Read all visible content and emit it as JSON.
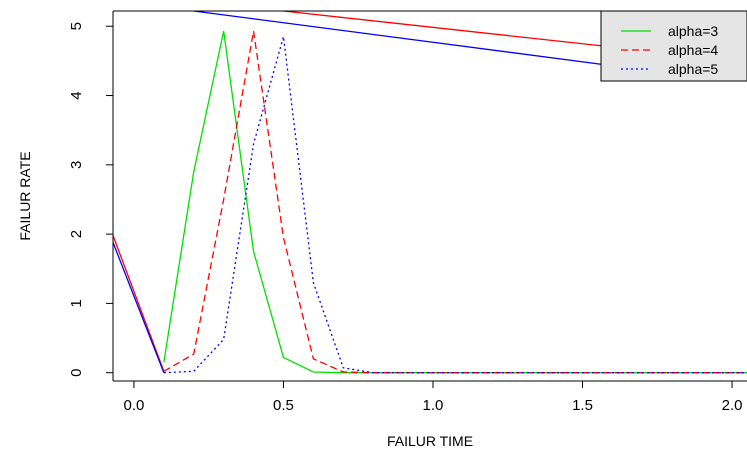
{
  "chart_data": {
    "type": "line",
    "xlabel": "FAILUR TIME",
    "ylabel": "FAILUR RATE",
    "xlim": [
      -0.07,
      2.05
    ],
    "ylim": [
      -0.12,
      5.22
    ],
    "xticks": [
      0.0,
      0.5,
      1.0,
      1.5,
      2.0
    ],
    "xtick_labels": [
      "0.0",
      "0.5",
      "1.0",
      "1.5",
      "2.0"
    ],
    "yticks": [
      0,
      1,
      2,
      3,
      4,
      5
    ],
    "ytick_labels": [
      "0",
      "1",
      "2",
      "3",
      "4",
      "5"
    ],
    "grid": false,
    "legend_position": "top-right",
    "series": [
      {
        "name": "alpha=3",
        "color": "#00e000",
        "dash": "solid",
        "x": [
          0.1,
          0.2,
          0.3,
          0.4,
          0.5,
          0.6,
          0.7,
          0.8,
          0.9,
          1.0,
          1.1,
          1.2,
          1.3,
          1.4,
          1.5,
          1.6,
          1.7,
          1.8,
          1.9,
          2.0,
          2.05
        ],
        "y": [
          0.15,
          2.9,
          4.93,
          1.75,
          0.22,
          0.01,
          0,
          0,
          0,
          0,
          0,
          0,
          0,
          0,
          0,
          0,
          0,
          0,
          0,
          0,
          0
        ]
      },
      {
        "name": "alpha=4",
        "color": "#ff0000",
        "dash": "dashed",
        "x": [
          0.1,
          0.2,
          0.3,
          0.4,
          0.5,
          0.6,
          0.7,
          0.8,
          0.9,
          1.0,
          1.1,
          1.2,
          1.3,
          1.4,
          1.5,
          1.6,
          1.7,
          1.8,
          1.9,
          2.0,
          2.05
        ],
        "y": [
          0.02,
          0.27,
          2.5,
          4.93,
          1.95,
          0.2,
          0.01,
          0,
          0,
          0,
          0,
          0,
          0,
          0,
          0,
          0,
          0,
          0,
          0,
          0,
          0
        ]
      },
      {
        "name": "alpha=5",
        "color": "#0000ff",
        "dash": "dotted",
        "x": [
          0.1,
          0.2,
          0.3,
          0.4,
          0.5,
          0.6,
          0.7,
          0.8,
          0.9,
          1.0,
          1.1,
          1.2,
          1.3,
          1.4,
          1.5,
          1.6,
          1.7,
          1.8,
          1.9,
          2.0,
          2.05
        ],
        "y": [
          0,
          0.02,
          0.48,
          3.3,
          4.85,
          1.3,
          0.07,
          0,
          0,
          0,
          0,
          0,
          0,
          0,
          0,
          0,
          0,
          0,
          0,
          0,
          0
        ]
      }
    ],
    "extra_lines": [
      {
        "color": "#ff0000",
        "x": [
          -0.07,
          0.1
        ],
        "y": [
          1.98,
          0.02
        ]
      },
      {
        "color": "#0000ff",
        "x": [
          -0.07,
          0.1
        ],
        "y": [
          1.88,
          0
        ]
      },
      {
        "color": "#ff0000",
        "x": [
          0.5,
          1.6
        ],
        "y": [
          5.22,
          4.7
        ]
      },
      {
        "color": "#0000ff",
        "x": [
          0.2,
          1.6
        ],
        "y": [
          5.22,
          4.43
        ]
      }
    ]
  }
}
